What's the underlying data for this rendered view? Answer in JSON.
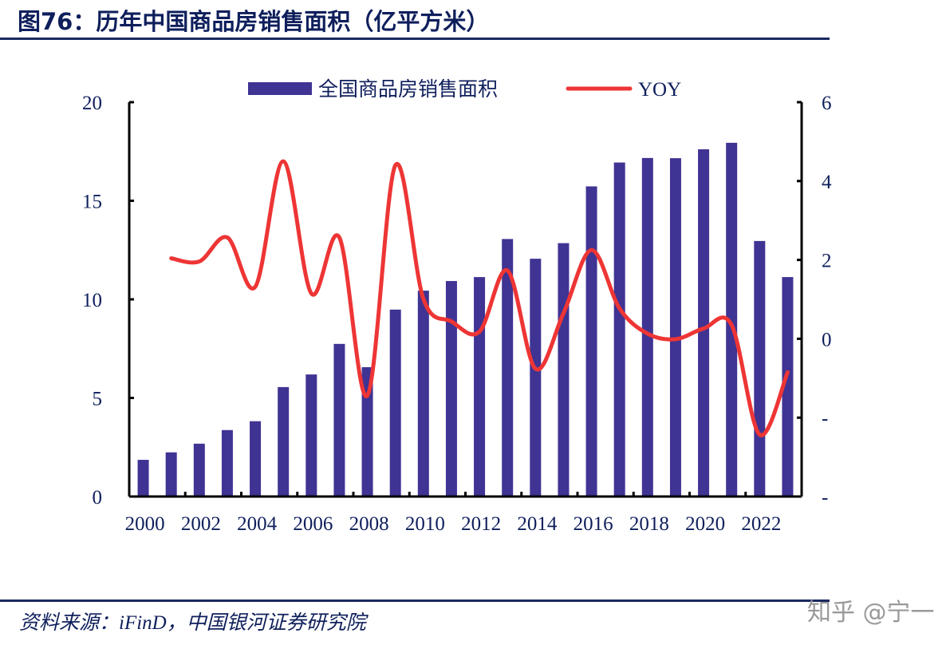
{
  "title": "图76：历年中国商品房销售面积（亿平方米）",
  "source": "资料来源：iFinD，中国银河证券研究院",
  "watermark": "知乎 @宁一",
  "colors": {
    "bar": "#3f3393",
    "line": "#ee3535",
    "text": "#0f1f5c"
  },
  "chart_data": {
    "type": "bar+line",
    "categories": [
      "2000",
      "2001",
      "2002",
      "2003",
      "2004",
      "2005",
      "2006",
      "2007",
      "2008",
      "2009",
      "2010",
      "2011",
      "2012",
      "2013",
      "2014",
      "2015",
      "2016",
      "2017",
      "2018",
      "2019",
      "2020",
      "2021",
      "2022",
      "2023"
    ],
    "x_tick_labels": [
      "2000",
      "2002",
      "2004",
      "2006",
      "2008",
      "2010",
      "2012",
      "2014",
      "2016",
      "2018",
      "2020",
      "2022"
    ],
    "series": [
      {
        "name": "全国商品房销售面积",
        "type": "bar",
        "axis": "left",
        "values": [
          1.86,
          2.24,
          2.68,
          3.37,
          3.82,
          5.55,
          6.19,
          7.74,
          6.56,
          9.48,
          10.44,
          10.93,
          11.13,
          13.06,
          12.06,
          12.85,
          15.73,
          16.94,
          17.17,
          17.16,
          17.61,
          17.94,
          12.96,
          11.13
        ]
      },
      {
        "name": "YOY",
        "type": "line",
        "axis": "right",
        "values": [
          null,
          20.4,
          19.6,
          25.7,
          13.2,
          45.0,
          11.5,
          25.7,
          -14.4,
          44.0,
          10.1,
          4.4,
          1.8,
          17.3,
          -7.6,
          6.5,
          22.5,
          7.7,
          1.3,
          -0.1,
          2.6,
          3.5,
          -24.3,
          -8.5
        ]
      }
    ],
    "left_axis": {
      "ylim": [
        0,
        20
      ],
      "ticks": [
        "0",
        "5",
        "10",
        "15",
        "20"
      ]
    },
    "right_axis": {
      "ylim": [
        -40,
        60
      ],
      "ticks": [
        "-",
        "-",
        "0",
        "2",
        "4",
        "6"
      ],
      "tick_values": [
        -40,
        -20,
        0,
        20,
        40,
        60
      ]
    },
    "legend": {
      "position": "top",
      "entries": [
        "全国商品房销售面积",
        "YOY"
      ]
    },
    "grid": false
  }
}
